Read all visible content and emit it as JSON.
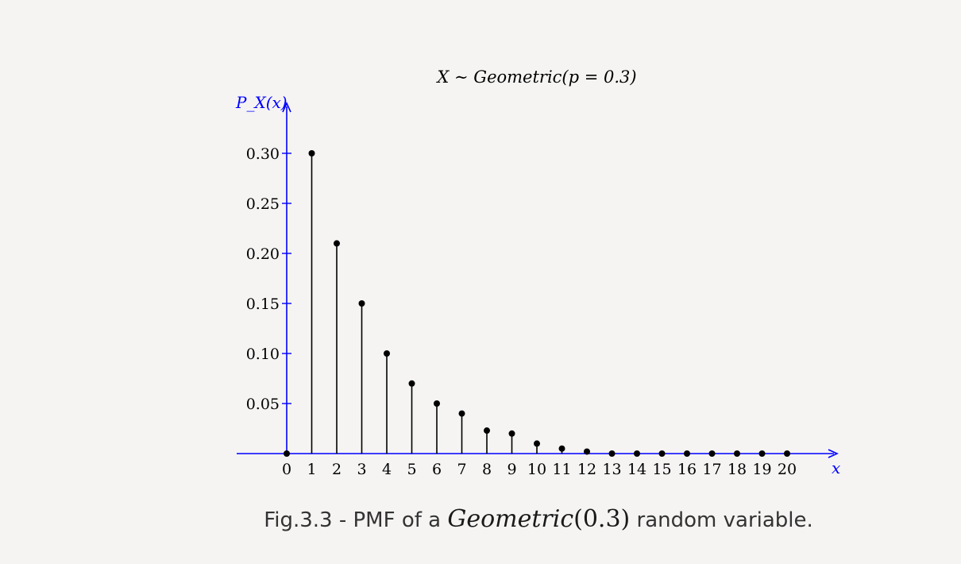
{
  "chart_data": {
    "type": "stem",
    "title": "X ∼ Geometric(p = 0.3)",
    "xlabel": "x",
    "ylabel": "P_X(x)",
    "x": [
      0,
      1,
      2,
      3,
      4,
      5,
      6,
      7,
      8,
      9,
      10,
      11,
      12,
      13,
      14,
      15,
      16,
      17,
      18,
      19,
      20
    ],
    "values": [
      0,
      0.3,
      0.21,
      0.15,
      0.1,
      0.07,
      0.05,
      0.04,
      0.023,
      0.02,
      0.01,
      0.005,
      0.002,
      0,
      0,
      0,
      0,
      0,
      0,
      0,
      0
    ],
    "ytick_labels": [
      "0.05",
      "0.10",
      "0.15",
      "0.20",
      "0.25",
      "0.30"
    ],
    "yticks": [
      0.05,
      0.1,
      0.15,
      0.2,
      0.25,
      0.3
    ],
    "xtick_labels": [
      "0",
      "1",
      "2",
      "3",
      "4",
      "5",
      "6",
      "7",
      "8",
      "9",
      "10",
      "11",
      "12",
      "13",
      "14",
      "15",
      "16",
      "17",
      "18",
      "19",
      "20"
    ],
    "ylim": [
      0,
      0.35
    ],
    "axis_color": "#0000ff",
    "stem_color": "#000000"
  },
  "caption": {
    "prefix": "Fig.3.3 - PMF of a ",
    "math": "Geometric(0.3)",
    "suffix": " random variable."
  }
}
